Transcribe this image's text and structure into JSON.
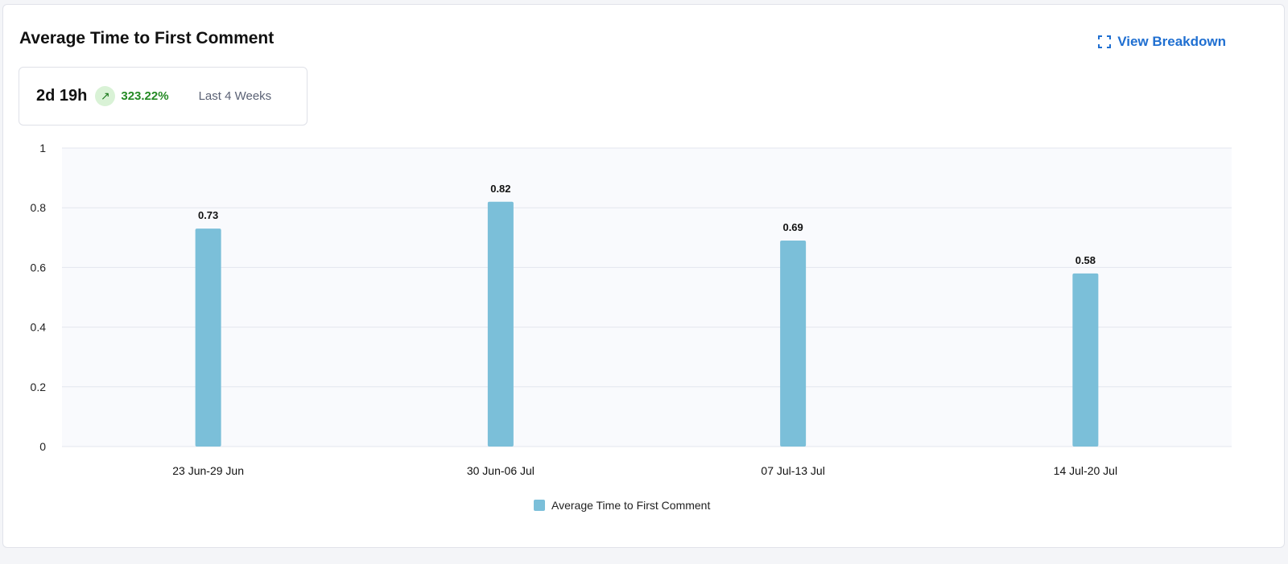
{
  "header": {
    "title": "Average Time to First Comment",
    "view_breakdown": "View Breakdown"
  },
  "stat": {
    "value": "2d 19h",
    "change": "323.22%",
    "trend": "up",
    "period": "Last 4 Weeks"
  },
  "colors": {
    "bar": "#7bbfd9",
    "accent": "#1f6fd1",
    "positive": "#248a24"
  },
  "chart_data": {
    "type": "bar",
    "categories": [
      "23 Jun-29 Jun",
      "30 Jun-06 Jul",
      "07 Jul-13 Jul",
      "14 Jul-20 Jul"
    ],
    "series": [
      {
        "name": "Average Time to First Comment",
        "values": [
          0.73,
          0.82,
          0.69,
          0.58
        ]
      }
    ],
    "ylim": [
      0,
      1
    ],
    "yticks": [
      "0",
      "0.2",
      "0.4",
      "0.6",
      "0.8",
      "1"
    ],
    "grid": true,
    "legend": "bottom"
  }
}
